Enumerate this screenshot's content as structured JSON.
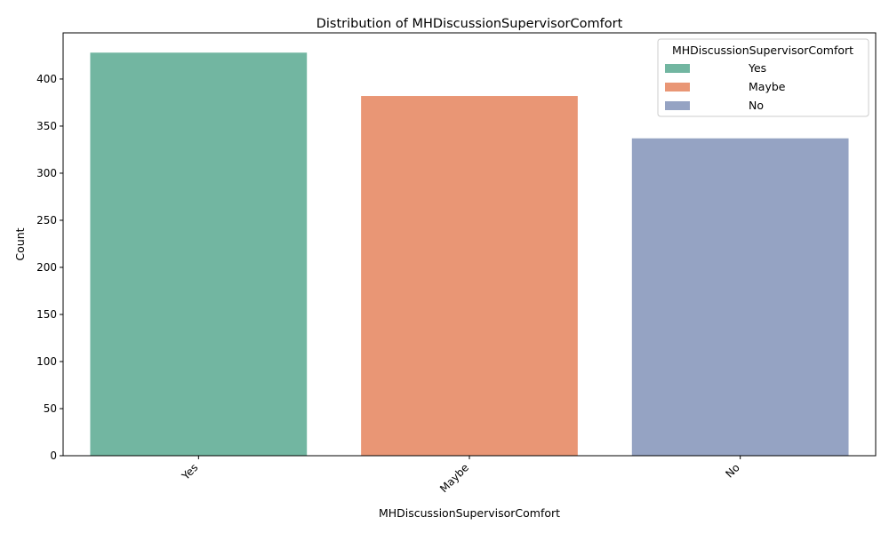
{
  "chart_data": {
    "type": "bar",
    "title": "Distribution of MHDiscussionSupervisorComfort",
    "xlabel": "MHDiscussionSupervisorComfort",
    "ylabel": "Count",
    "categories": [
      "Yes",
      "Maybe",
      "No"
    ],
    "values": [
      428,
      382,
      337
    ],
    "colors": [
      "#72b6a1",
      "#e99675",
      "#95a3c3"
    ],
    "ylim": [
      0,
      449
    ],
    "yticks": [
      0,
      50,
      100,
      150,
      200,
      250,
      300,
      350,
      400
    ],
    "grid": false,
    "legend": {
      "title": "MHDiscussionSupervisorComfort",
      "placement": "top-right",
      "entries": [
        "Yes",
        "Maybe",
        "No"
      ]
    }
  }
}
